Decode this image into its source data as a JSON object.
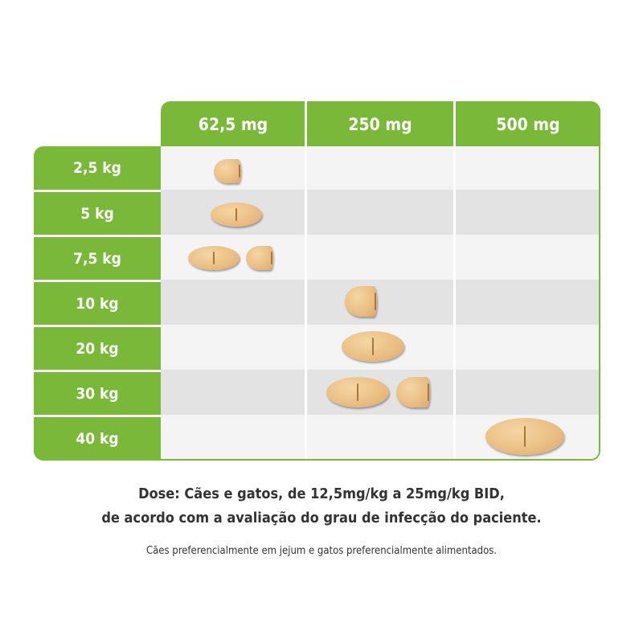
{
  "table": {
    "columns": [
      "62,5 mg",
      "250 mg",
      "500 mg"
    ],
    "weights": [
      "2,5 kg",
      "5 kg",
      "7,5 kg",
      "10 kg",
      "20 kg",
      "30 kg",
      "40 kg"
    ]
  },
  "dose": {
    "line1": "Dose: Cães e gatos, de 12,5mg/kg a 25mg/kg BID,",
    "line2": "de acordo com a avaliação do grau de infecção do paciente."
  },
  "note": "Cães preferencialmente em jejum e gatos preferencialmente alimentados.",
  "colors": {
    "accent_green": "#7ab83a",
    "row_light": "#f4f4f4",
    "row_dark": "#e3e3e3",
    "tablet": "#e9bd82"
  },
  "tablet_icon": "scored-tablet-icon"
}
